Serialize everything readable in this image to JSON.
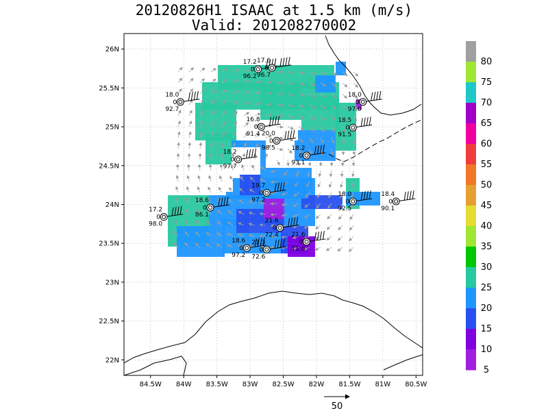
{
  "title_line1": "20120826H1 ISAAC at 1.5 km (m/s)",
  "title_line2": "Valid: 201208270002",
  "map": {
    "type": "wind-speed-analysis",
    "lon_range": [
      -84.9,
      -80.4
    ],
    "lat_range": [
      21.8,
      26.2
    ],
    "lat_ticks": [
      {
        "value": 26.0,
        "label": "26N"
      },
      {
        "value": 25.5,
        "label": "25.5N"
      },
      {
        "value": 25.0,
        "label": "25N"
      },
      {
        "value": 24.5,
        "label": "24.5N"
      },
      {
        "value": 24.0,
        "label": "24N"
      },
      {
        "value": 23.5,
        "label": "23.5N"
      },
      {
        "value": 23.0,
        "label": "23N"
      },
      {
        "value": 22.5,
        "label": "22.5N"
      },
      {
        "value": 22.0,
        "label": "22N"
      }
    ],
    "lon_ticks": [
      {
        "value": -84.5,
        "label": "84.5W"
      },
      {
        "value": -84.0,
        "label": "84W"
      },
      {
        "value": -83.5,
        "label": "83.5W"
      },
      {
        "value": -83.0,
        "label": "83W"
      },
      {
        "value": -82.5,
        "label": "82.5W"
      },
      {
        "value": -82.0,
        "label": "82W"
      },
      {
        "value": -81.5,
        "label": "81.5W"
      },
      {
        "value": -81.0,
        "label": "81W"
      },
      {
        "value": -80.5,
        "label": "80.5W"
      }
    ],
    "grid": "dotted"
  },
  "colorbar": {
    "labels": [
      "80",
      "75",
      "70",
      "65",
      "60",
      "55",
      "50",
      "45",
      "40",
      "35",
      "30",
      "25",
      "20",
      "15",
      "10",
      "5"
    ],
    "colors": [
      "#a0a0a0",
      "#a0e632",
      "#1ec8c8",
      "#a000c8",
      "#f000a0",
      "#f03c3c",
      "#f07828",
      "#e6a032",
      "#e6dc32",
      "#a0e632",
      "#00c800",
      "#28c8a0",
      "#1e96ff",
      "#2850f0",
      "#8000e0",
      "#a020e0"
    ]
  },
  "stations": [
    {
      "lon": -82.88,
      "lat": 25.74,
      "speed": "17.2",
      "dir": "0",
      "pres": "96.2"
    },
    {
      "lon": -82.67,
      "lat": 25.76,
      "speed": "17.6",
      "dir": "0",
      "pres": "96.7"
    },
    {
      "lon": -84.05,
      "lat": 25.32,
      "speed": "18.0",
      "dir": "0",
      "pres": "92.7"
    },
    {
      "lon": -81.3,
      "lat": 25.32,
      "speed": "18.0",
      "dir": "0",
      "pres": "97.0"
    },
    {
      "lon": -82.83,
      "lat": 25.0,
      "speed": "16.8",
      "dir": "0",
      "pres": "91.4"
    },
    {
      "lon": -82.6,
      "lat": 24.82,
      "speed": "20.0",
      "dir": "0",
      "pres": "98.5"
    },
    {
      "lon": -81.45,
      "lat": 24.99,
      "speed": "18.5",
      "dir": "0",
      "pres": "91.5"
    },
    {
      "lon": -83.18,
      "lat": 24.58,
      "speed": "18.2",
      "dir": "0",
      "pres": "97.7"
    },
    {
      "lon": -82.15,
      "lat": 24.63,
      "speed": "18.2",
      "dir": "0",
      "pres": "93.1"
    },
    {
      "lon": -82.75,
      "lat": 24.15,
      "speed": "19.7",
      "dir": "0",
      "pres": "97.2"
    },
    {
      "lon": -83.6,
      "lat": 23.96,
      "speed": "18.6",
      "dir": "0",
      "pres": "86.1"
    },
    {
      "lon": -84.3,
      "lat": 23.84,
      "speed": "17.2",
      "dir": "0",
      "pres": "98.0"
    },
    {
      "lon": -81.45,
      "lat": 24.04,
      "speed": "18.0",
      "dir": "0",
      "pres": "92.5"
    },
    {
      "lon": -80.8,
      "lat": 24.04,
      "speed": "18.4",
      "dir": "0",
      "pres": "90.1"
    },
    {
      "lon": -82.55,
      "lat": 23.7,
      "speed": "21.6",
      "dir": "0",
      "pres": "72.4"
    },
    {
      "lon": -83.05,
      "lat": 23.44,
      "speed": "18.6",
      "dir": "0",
      "pres": "97.2"
    },
    {
      "lon": -82.75,
      "lat": 23.42,
      "speed": "21.3",
      "dir": "0",
      "pres": "72.6"
    },
    {
      "lon": -82.15,
      "lat": 23.52,
      "speed": "21.6",
      "dir": "0",
      "pres": "71.0"
    }
  ],
  "reference_vector": {
    "label": "50"
  }
}
